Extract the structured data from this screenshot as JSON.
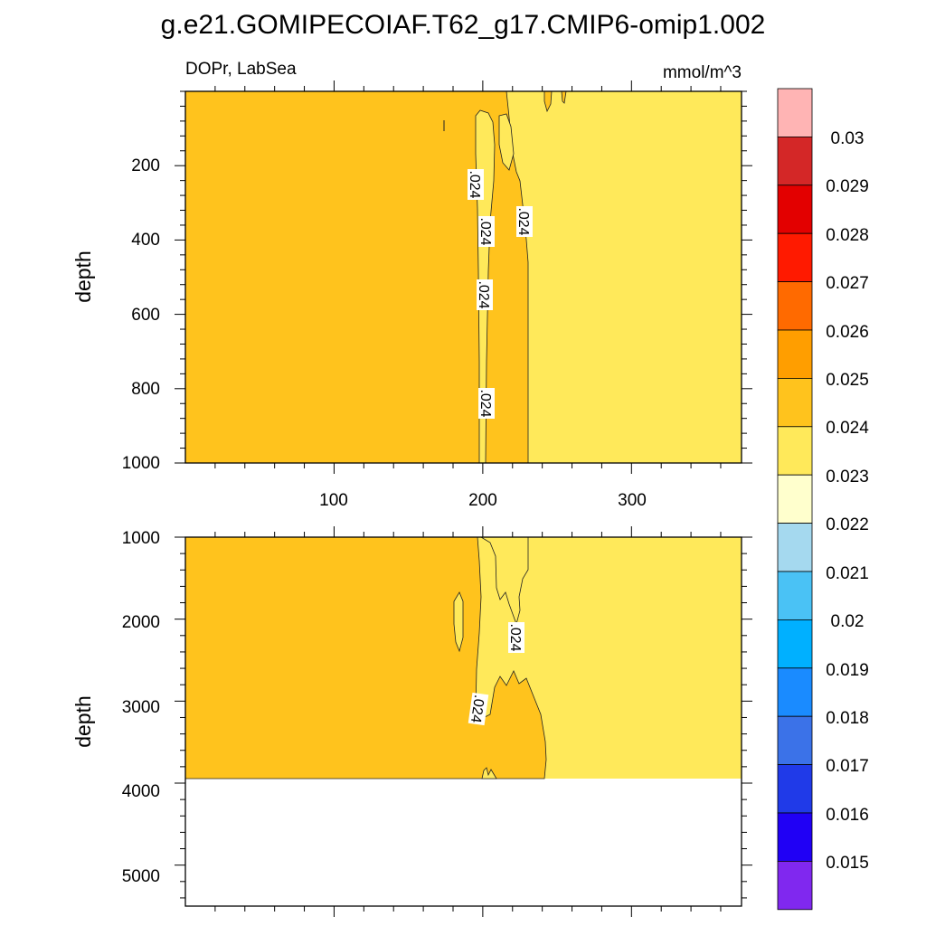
{
  "chart_data": {
    "type": "contour",
    "title": "g.e21.GOMIPECOIAF.T62_g17.CMIP6-omip1.002",
    "subtitle_left": "DOPr, LabSea",
    "units": "mmol/m^3",
    "panels": [
      {
        "name": "upper",
        "ylabel": "depth",
        "ylim": [
          0,
          1000
        ],
        "yticks": [
          200,
          400,
          600,
          800,
          1000
        ],
        "xlim": [
          0,
          374
        ],
        "xticks": [
          100,
          200,
          300
        ],
        "contour_labels": [
          ".024",
          ".024",
          ".024",
          ".024",
          ".024"
        ],
        "regions": [
          {
            "level": "0.024-0.025",
            "x_range": [
              0,
              230
            ]
          },
          {
            "level": "0.023-0.024",
            "x_range": [
              230,
              374
            ]
          }
        ]
      },
      {
        "name": "lower",
        "ylabel": "depth",
        "ylim": [
          1000,
          5500
        ],
        "yticks": [
          1000,
          2000,
          3000,
          4000,
          5000
        ],
        "xlim": [
          0,
          374
        ],
        "contour_labels": [
          ".024",
          ".024"
        ],
        "data_max_depth": 3870,
        "regions": [
          {
            "level": "0.024-0.025",
            "x_range": [
              0,
              230
            ]
          },
          {
            "level": "0.023-0.024",
            "x_range": [
              230,
              374
            ]
          }
        ]
      }
    ],
    "colorbar": {
      "colors": [
        "#ffb4b4",
        "#d42727",
        "#e30000",
        "#ff1a00",
        "#ff6a00",
        "#ff9e00",
        "#ffc31d",
        "#ffe95a",
        "#ffffcd",
        "#a5d9ef",
        "#4ac2f5",
        "#00b0ff",
        "#1a8bff",
        "#3b72e8",
        "#203ae8",
        "#2000f5",
        "#8028ef"
      ],
      "labels": [
        "0.03",
        "0.029",
        "0.028",
        "0.027",
        "0.026",
        "0.025",
        "0.024",
        "0.023",
        "0.022",
        "0.021",
        "0.02",
        "0.019",
        "0.018",
        "0.017",
        "0.016",
        "0.015"
      ]
    }
  }
}
